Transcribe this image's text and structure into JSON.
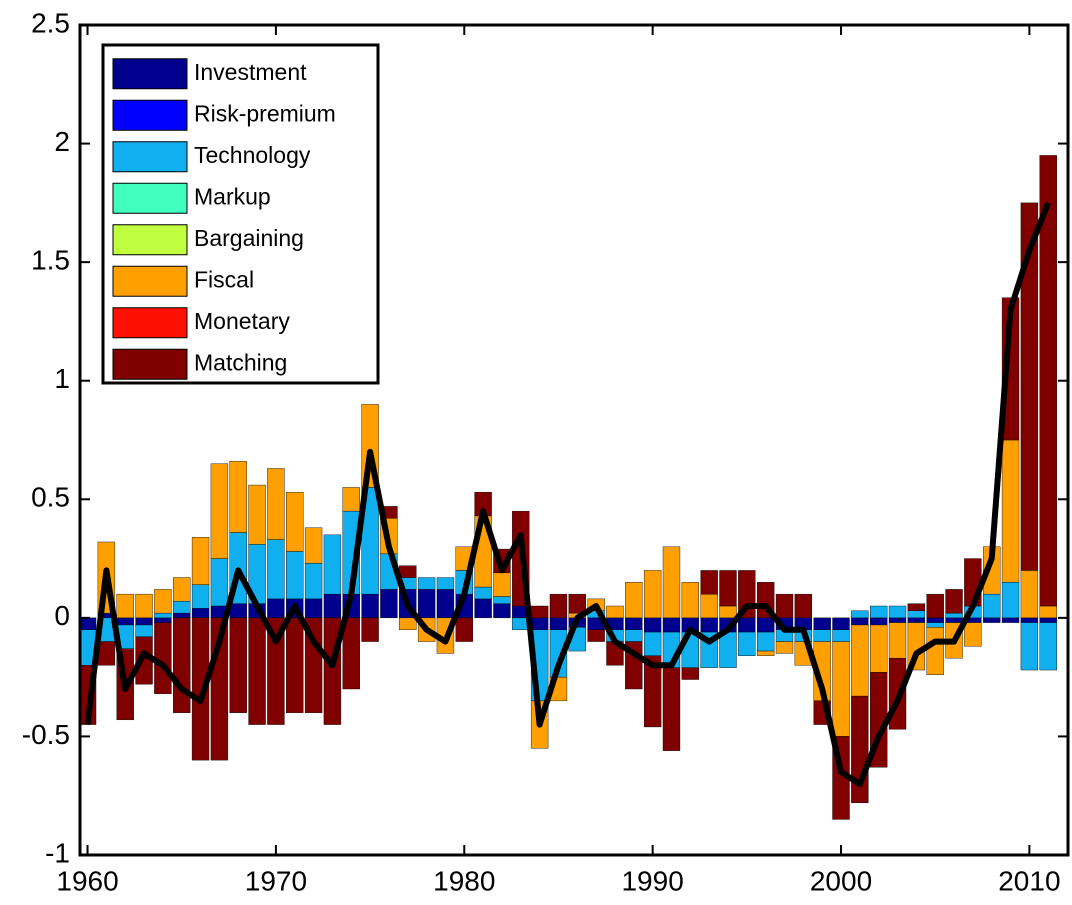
{
  "chart_data": {
    "type": "stacked-bar-line",
    "x": [
      1960,
      1961,
      1962,
      1963,
      1964,
      1965,
      1966,
      1967,
      1968,
      1969,
      1970,
      1971,
      1972,
      1973,
      1974,
      1975,
      1976,
      1977,
      1978,
      1979,
      1980,
      1981,
      1982,
      1983,
      1984,
      1985,
      1986,
      1987,
      1988,
      1989,
      1990,
      1991,
      1992,
      1993,
      1994,
      1995,
      1996,
      1997,
      1998,
      1999,
      2000,
      2001,
      2002,
      2003,
      2004,
      2005,
      2006,
      2007,
      2008,
      2009,
      2010,
      2011
    ],
    "xlim": [
      1959.6,
      2012.05
    ],
    "xticks": [
      1960,
      1970,
      1980,
      1990,
      2000,
      2010
    ],
    "ylim": [
      -1,
      2.5
    ],
    "yticks": [
      -1,
      -0.5,
      0,
      0.5,
      1,
      1.5,
      2,
      2.5
    ],
    "series": [
      {
        "name": "Investment",
        "color": "#00008f",
        "values": [
          -0.05,
          0.02,
          -0.03,
          -0.03,
          -0.02,
          0.02,
          0.04,
          0.05,
          0.06,
          0.06,
          0.08,
          0.08,
          0.08,
          0.1,
          0.1,
          0.1,
          0.12,
          0.12,
          0.12,
          0.12,
          0.1,
          0.08,
          0.06,
          0.05,
          -0.05,
          -0.05,
          -0.04,
          -0.05,
          -0.05,
          -0.05,
          -0.06,
          -0.06,
          -0.06,
          -0.06,
          -0.06,
          -0.06,
          -0.06,
          -0.05,
          -0.05,
          -0.05,
          -0.05,
          -0.03,
          -0.03,
          -0.02,
          -0.02,
          -0.02,
          -0.02,
          -0.02,
          -0.02,
          -0.02,
          -0.02,
          -0.02
        ]
      },
      {
        "name": "Risk-premium",
        "color": "#0000ff",
        "values": [
          0,
          0,
          0,
          0,
          0,
          0,
          0,
          0,
          0,
          0,
          0,
          0,
          0,
          0,
          0,
          0,
          0,
          0,
          0,
          0,
          0,
          0,
          0,
          0,
          0,
          0,
          0,
          0,
          0,
          0,
          0,
          0,
          0,
          0,
          0,
          0,
          0,
          0,
          0,
          0,
          0,
          0,
          0,
          0,
          0,
          0,
          0,
          0,
          0,
          0,
          0,
          0
        ]
      },
      {
        "name": "Technology",
        "color": "#10aff0",
        "values": [
          -0.15,
          -0.1,
          -0.1,
          -0.05,
          0.02,
          0.05,
          0.1,
          0.2,
          0.3,
          0.25,
          0.25,
          0.2,
          0.15,
          0.25,
          0.35,
          0.45,
          0.15,
          0.05,
          0.05,
          0.05,
          0.1,
          0.05,
          0.03,
          -0.05,
          -0.3,
          -0.2,
          -0.1,
          0.03,
          -0.05,
          -0.05,
          -0.1,
          -0.15,
          -0.15,
          -0.15,
          -0.15,
          -0.1,
          -0.08,
          -0.05,
          -0.05,
          -0.05,
          -0.05,
          0.03,
          0.05,
          0.05,
          0.03,
          -0.02,
          0.02,
          0.05,
          0.1,
          0.15,
          -0.2,
          -0.2
        ]
      },
      {
        "name": "Markup",
        "color": "#40ffbf",
        "values": [
          0,
          0,
          0,
          0,
          0,
          0,
          0,
          0,
          0,
          0,
          0,
          0,
          0,
          0,
          0,
          0,
          0,
          0,
          0,
          0,
          0,
          0,
          0,
          0,
          0,
          0,
          0,
          0,
          0,
          0,
          0,
          0,
          0,
          0,
          0,
          0,
          0,
          0,
          0,
          0,
          0,
          0,
          0,
          0,
          0,
          0,
          0,
          0,
          0,
          0,
          0,
          0
        ]
      },
      {
        "name": "Bargaining",
        "color": "#bfff40",
        "values": [
          0,
          0,
          0,
          0,
          0,
          0,
          0,
          0,
          0,
          0,
          0,
          0,
          0,
          0,
          0,
          0,
          0,
          0,
          0,
          0,
          0,
          0,
          0,
          0,
          0,
          0,
          0,
          0,
          0,
          0,
          0,
          0,
          0,
          0,
          0,
          0,
          0,
          0,
          0,
          0,
          0,
          0,
          0,
          0,
          0,
          0,
          0,
          0,
          0,
          0,
          0,
          0
        ]
      },
      {
        "name": "Fiscal",
        "color": "#ffa000",
        "values": [
          0,
          0.3,
          0.1,
          0.1,
          0.1,
          0.1,
          0.2,
          0.4,
          0.3,
          0.25,
          0.3,
          0.25,
          0.15,
          0,
          0.1,
          0.35,
          0.15,
          -0.05,
          -0.1,
          -0.15,
          0.1,
          0.3,
          0.1,
          0,
          -0.2,
          -0.1,
          0.02,
          0.05,
          0.05,
          0.15,
          0.2,
          0.3,
          0.15,
          0.1,
          0.05,
          0,
          -0.02,
          -0.05,
          -0.1,
          -0.25,
          -0.4,
          -0.3,
          -0.2,
          -0.15,
          -0.2,
          -0.2,
          -0.15,
          -0.1,
          0.2,
          0.6,
          0.2,
          0.05
        ]
      },
      {
        "name": "Monetary",
        "color": "#ff1000",
        "values": [
          0,
          0,
          0,
          0,
          0,
          0,
          0,
          0,
          0,
          0,
          0,
          0,
          0,
          0,
          0,
          0,
          0,
          0,
          0,
          0,
          0,
          0,
          0,
          0,
          0,
          0,
          0,
          0,
          0,
          0,
          0,
          0,
          0,
          0,
          0,
          0,
          0,
          0,
          0,
          0,
          0,
          0,
          0,
          0,
          0,
          0,
          0,
          0,
          0,
          0,
          0,
          0
        ]
      },
      {
        "name": "Matching",
        "color": "#800000",
        "values": [
          -0.25,
          -0.1,
          -0.3,
          -0.2,
          -0.3,
          -0.4,
          -0.6,
          -0.6,
          -0.4,
          -0.45,
          -0.45,
          -0.4,
          -0.4,
          -0.45,
          -0.3,
          -0.1,
          0.05,
          0.05,
          0,
          0,
          -0.1,
          0.1,
          0.1,
          0.4,
          0.05,
          0.1,
          0.08,
          -0.05,
          -0.1,
          -0.2,
          -0.3,
          -0.35,
          -0.05,
          0.1,
          0.15,
          0.2,
          0.15,
          0.1,
          0.1,
          -0.1,
          -0.35,
          -0.45,
          -0.4,
          -0.3,
          0.03,
          0.1,
          0.1,
          0.2,
          0,
          0.6,
          1.55,
          1.9
        ]
      }
    ],
    "line": {
      "color": "#000000",
      "values": [
        -0.45,
        0.2,
        -0.3,
        -0.15,
        -0.2,
        -0.3,
        -0.35,
        -0.1,
        0.2,
        0.05,
        -0.1,
        0.05,
        -0.1,
        -0.2,
        0.1,
        0.7,
        0.3,
        0.05,
        -0.05,
        -0.1,
        0.1,
        0.45,
        0.2,
        0.35,
        -0.45,
        -0.2,
        0,
        0.05,
        -0.1,
        -0.15,
        -0.2,
        -0.2,
        -0.05,
        -0.1,
        -0.05,
        0.05,
        0.05,
        -0.05,
        -0.05,
        -0.3,
        -0.65,
        -0.7,
        -0.5,
        -0.35,
        -0.15,
        -0.1,
        -0.1,
        0.05,
        0.25,
        1.3,
        1.55,
        1.75
      ]
    }
  }
}
